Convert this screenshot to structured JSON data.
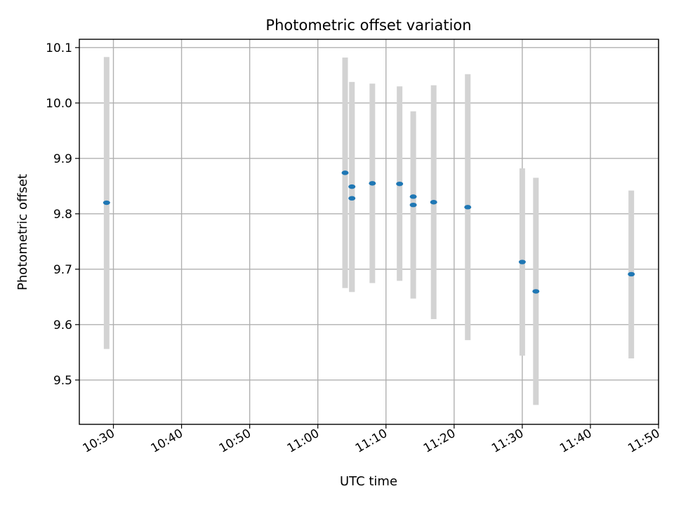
{
  "chart_data": {
    "type": "scatter",
    "title": "Photometric offset variation",
    "xlabel": "UTC time",
    "ylabel": "Photometric offset",
    "xlim": [
      "10:25",
      "11:50"
    ],
    "ylim": [
      9.42,
      10.115
    ],
    "x_ticks": [
      "10:30",
      "10:40",
      "10:50",
      "11:00",
      "11:10",
      "11:20",
      "11:30",
      "11:40",
      "11:50"
    ],
    "y_ticks": [
      "9.5",
      "9.6",
      "9.7",
      "9.8",
      "9.9",
      "10.0",
      "10.1"
    ],
    "grid": true,
    "colors": {
      "point": "#1f77b4",
      "errorbar": "#d3d3d3",
      "grid": "#b0b0b0"
    },
    "points": [
      {
        "x": "10:29",
        "y": 9.82,
        "ylow": 9.556,
        "yhigh": 10.083
      },
      {
        "x": "11:04",
        "y": 9.874,
        "ylow": 9.666,
        "yhigh": 10.082
      },
      {
        "x": "11:05",
        "y": 9.828,
        "ylow": 9.659,
        "yhigh": 9.997
      },
      {
        "x": "11:05",
        "y": 9.849,
        "ylow": 9.659,
        "yhigh": 10.038
      },
      {
        "x": "11:08",
        "y": 9.855,
        "ylow": 9.675,
        "yhigh": 10.035
      },
      {
        "x": "11:12",
        "y": 9.854,
        "ylow": 9.679,
        "yhigh": 10.03
      },
      {
        "x": "11:14",
        "y": 9.831,
        "ylow": 9.681,
        "yhigh": 9.979
      },
      {
        "x": "11:14",
        "y": 9.816,
        "ylow": 9.647,
        "yhigh": 9.985
      },
      {
        "x": "11:17",
        "y": 9.821,
        "ylow": 9.61,
        "yhigh": 10.032
      },
      {
        "x": "11:22",
        "y": 9.812,
        "ylow": 9.572,
        "yhigh": 10.052
      },
      {
        "x": "11:30",
        "y": 9.713,
        "ylow": 9.544,
        "yhigh": 9.882
      },
      {
        "x": "11:32",
        "y": 9.66,
        "ylow": 9.455,
        "yhigh": 9.865
      },
      {
        "x": "11:46",
        "y": 9.691,
        "ylow": 9.539,
        "yhigh": 9.842
      }
    ]
  }
}
